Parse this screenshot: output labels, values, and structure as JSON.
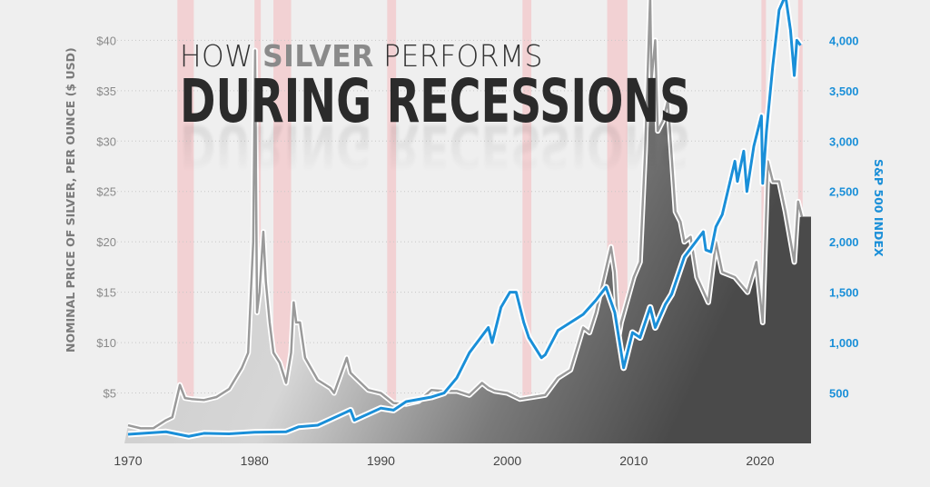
{
  "title": {
    "prefix": "HOW ",
    "highlight": "SILVER",
    "suffix": " PERFORMS",
    "line2": "DURING RECESSIONS"
  },
  "chart_data": {
    "type": "line",
    "title": "HOW SILVER PERFORMS DURING RECESSIONS",
    "xlabel": "",
    "ylabel": "NOMINAL PRICE OF SILVER, PER OUNCE ($ USD)",
    "y2label": "S&P 500 INDEX",
    "xlim": [
      1970,
      2024
    ],
    "ylim": [
      0,
      44
    ],
    "y2lim": [
      0,
      4400
    ],
    "x_ticks": [
      "1970",
      "1980",
      "1990",
      "2000",
      "2010",
      "2020"
    ],
    "x_tick_values": [
      1970,
      1980,
      1990,
      2000,
      2010,
      2020
    ],
    "y_ticks": [
      "$5",
      "$10",
      "$15",
      "$20",
      "$25",
      "$30",
      "$35",
      "$40"
    ],
    "y_tick_values": [
      5,
      10,
      15,
      20,
      25,
      30,
      35,
      40
    ],
    "y2_ticks": [
      "500",
      "1,000",
      "1,500",
      "2,000",
      "2,500",
      "3,000",
      "3,500",
      "4,000"
    ],
    "y2_tick_values": [
      500,
      1000,
      1500,
      2000,
      2500,
      3000,
      3500,
      4000
    ],
    "grid": "horizontal dotted",
    "recessions": [
      [
        1973.9,
        1975.2
      ],
      [
        1980.0,
        1980.5
      ],
      [
        1981.5,
        1982.9
      ],
      [
        1990.5,
        1991.2
      ],
      [
        2001.2,
        2001.9
      ],
      [
        2007.9,
        2009.5
      ],
      [
        2020.1,
        2020.4
      ],
      [
        2023.0,
        2023.3
      ]
    ],
    "colors": {
      "silver": "#9a9a9a",
      "sp500": "#1a8fd8",
      "recession": "#f2c9cc",
      "axis2": "#1a8fd8"
    },
    "series": [
      {
        "axis": "left",
        "x": [
          1970,
          1971,
          1972,
          1973,
          1973.5,
          1974.1,
          1974.5,
          1975,
          1976,
          1977,
          1978,
          1979,
          1979.5,
          1979.9,
          1980.05,
          1980.2,
          1980.4,
          1980.7,
          1980.9,
          1981.2,
          1981.5,
          1982,
          1982.5,
          1982.9,
          1983.1,
          1983.3,
          1983.6,
          1984,
          1985,
          1986,
          1986.3,
          1987.3,
          1987.6,
          1988,
          1989,
          1990,
          1991,
          1992,
          1993,
          1994,
          1995,
          1996,
          1997,
          1998,
          1998.5,
          1999,
          2000,
          2001,
          2002,
          2003,
          2004,
          2005,
          2006,
          2006.5,
          2007,
          2008.2,
          2008.5,
          2008.8,
          2009,
          2010,
          2010.5,
          2010.9,
          2011.3,
          2011.4,
          2011.7,
          2011.9,
          2012.3,
          2012.7,
          2013.3,
          2013.7,
          2014,
          2014.5,
          2015,
          2015.9,
          2016.5,
          2017,
          2018,
          2019,
          2019.7,
          2020.2,
          2020.6,
          2021,
          2021.5,
          2022,
          2022.7,
          2023,
          2023.3
        ],
        "values": [
          1.8,
          1.5,
          1.5,
          2.3,
          2.6,
          5.8,
          4.5,
          4.4,
          4.3,
          4.6,
          5.4,
          7.5,
          9,
          20,
          39,
          13,
          15,
          21,
          16,
          12,
          9,
          8,
          6,
          9,
          14,
          12,
          12,
          8.5,
          6.3,
          5.5,
          5,
          8.5,
          7,
          6.5,
          5.3,
          5,
          4,
          3.9,
          4.2,
          5.3,
          5.2,
          5.2,
          4.8,
          6,
          5.5,
          5.2,
          5,
          4.4,
          4.6,
          4.8,
          6.5,
          7.3,
          11.5,
          11,
          13,
          19.5,
          17,
          10.5,
          12,
          16.5,
          18,
          29,
          48,
          36,
          40,
          31,
          32,
          34,
          23,
          22,
          20,
          20.5,
          16.5,
          14,
          20,
          17,
          16.5,
          15,
          18,
          12,
          28,
          26,
          26,
          23,
          18,
          24,
          22.5
        ]
      },
      {
        "name": "S&P 500 INDEX",
        "axis": "right",
        "x": [
          1970,
          1973,
          1974.8,
          1976,
          1978,
          1980,
          1982.5,
          1983.5,
          1985,
          1987.6,
          1987.9,
          1990,
          1991,
          1992,
          1994,
          1995,
          1996,
          1997,
          1998.5,
          1998.8,
          1999.5,
          2000.2,
          2000.7,
          2001.3,
          2001.7,
          2002.7,
          2003,
          2004,
          2005,
          2006,
          2007,
          2007.8,
          2008.5,
          2009.2,
          2009.9,
          2010.5,
          2011.3,
          2011.7,
          2012.5,
          2013,
          2014,
          2015.5,
          2015.7,
          2016.1,
          2016.5,
          2017,
          2018,
          2018.2,
          2018.7,
          2018.95,
          2019.5,
          2020.1,
          2020.2,
          2020.5,
          2021,
          2021.5,
          2022,
          2022.4,
          2022.7,
          2022.9,
          2023.2
        ],
        "values": [
          90,
          115,
          70,
          100,
          95,
          110,
          115,
          165,
          180,
          330,
          230,
          350,
          330,
          415,
          460,
          500,
          650,
          900,
          1150,
          1000,
          1350,
          1500,
          1500,
          1200,
          1050,
          850,
          880,
          1120,
          1200,
          1280,
          1420,
          1550,
          1300,
          750,
          1100,
          1050,
          1350,
          1150,
          1380,
          1480,
          1850,
          2100,
          1920,
          1900,
          2150,
          2270,
          2800,
          2600,
          2900,
          2500,
          2950,
          3250,
          2580,
          3100,
          3750,
          4300,
          4750,
          4100,
          3650,
          4000,
          3950
        ]
      }
    ]
  }
}
